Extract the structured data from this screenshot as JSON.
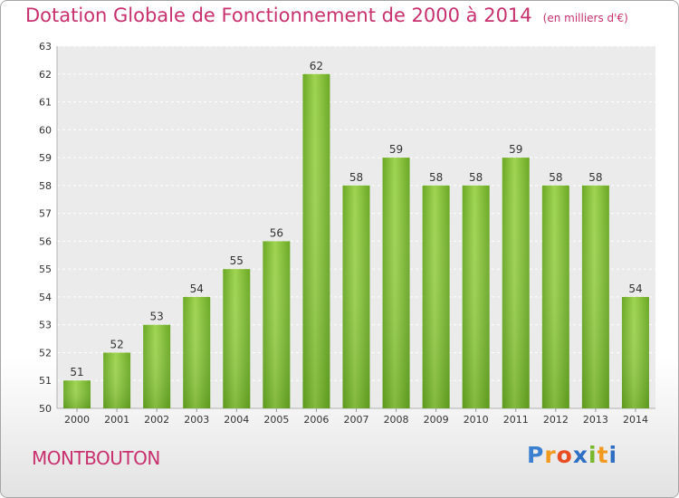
{
  "chart_data": {
    "type": "bar",
    "title": "Dotation Globale de Fonctionnement de 2000 à 2014",
    "subtitle": "(en milliers d'€)",
    "categories": [
      "2000",
      "2001",
      "2002",
      "2003",
      "2004",
      "2005",
      "2006",
      "2007",
      "2008",
      "2009",
      "2010",
      "2011",
      "2012",
      "2013",
      "2014"
    ],
    "values": [
      51,
      52,
      53,
      54,
      55,
      56,
      62,
      58,
      59,
      58,
      58,
      59,
      58,
      58,
      54
    ],
    "ylim": [
      50,
      63
    ],
    "yticks": [
      50,
      51,
      52,
      53,
      54,
      55,
      56,
      57,
      58,
      59,
      60,
      61,
      62,
      63
    ],
    "grid": true,
    "bar_color": "#7cbc2e"
  },
  "footer": {
    "city": "MONTBOUTON",
    "logo": {
      "letters": [
        "P",
        "r",
        "o",
        "x",
        "i",
        "t",
        "i"
      ],
      "colors": [
        "#3a7fd0",
        "#f29a1d",
        "#e84c20",
        "#2e6fc4",
        "#79b82b",
        "#f29a1d",
        "#2e6fc4"
      ]
    }
  }
}
